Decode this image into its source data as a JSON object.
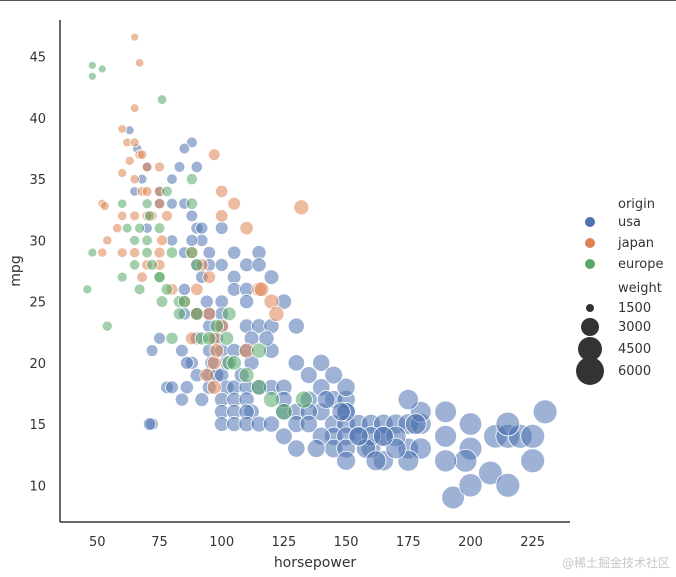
{
  "chart_data": {
    "type": "scatter",
    "xlabel": "horsepower",
    "ylabel": "mpg",
    "xlim": [
      35,
      240
    ],
    "ylim": [
      7,
      48
    ],
    "xticks": [
      50,
      75,
      100,
      125,
      150,
      175,
      200,
      225
    ],
    "yticks": [
      10,
      15,
      20,
      25,
      30,
      35,
      40,
      45
    ],
    "grid": false,
    "legend": {
      "placement": "right",
      "hue_title": "origin",
      "size_title": "weight",
      "size_levels": [
        1500,
        3000,
        4500,
        6000
      ]
    },
    "series": [
      {
        "name": "usa",
        "color": "#4c72b0",
        "points": [
          [
            88,
            38
          ],
          [
            85,
            37.5
          ],
          [
            90,
            36
          ],
          [
            63,
            39
          ],
          [
            66,
            37.5
          ],
          [
            70,
            36
          ],
          [
            75,
            34
          ],
          [
            80,
            33
          ],
          [
            85,
            33
          ],
          [
            88,
            32
          ],
          [
            90,
            31
          ],
          [
            92,
            30
          ],
          [
            95,
            29
          ],
          [
            95,
            28
          ],
          [
            90,
            28
          ],
          [
            100,
            28
          ],
          [
            105,
            27
          ],
          [
            110,
            28
          ],
          [
            115,
            29
          ],
          [
            105,
            26
          ],
          [
            100,
            25
          ],
          [
            95,
            24
          ],
          [
            90,
            24
          ],
          [
            85,
            24
          ],
          [
            100,
            23
          ],
          [
            110,
            23
          ],
          [
            115,
            23
          ],
          [
            120,
            23
          ],
          [
            130,
            23
          ],
          [
            90,
            22
          ],
          [
            95,
            21
          ],
          [
            100,
            21
          ],
          [
            105,
            21
          ],
          [
            110,
            21
          ],
          [
            88,
            20
          ],
          [
            90,
            19
          ],
          [
            95,
            19
          ],
          [
            98,
            19
          ],
          [
            100,
            19
          ],
          [
            102,
            18
          ],
          [
            105,
            18
          ],
          [
            110,
            18
          ],
          [
            115,
            18
          ],
          [
            120,
            18
          ],
          [
            78,
            18
          ],
          [
            100,
            17
          ],
          [
            105,
            17
          ],
          [
            110,
            17
          ],
          [
            112,
            16
          ],
          [
            100,
            16
          ],
          [
            105,
            16
          ],
          [
            110,
            16
          ],
          [
            100,
            15
          ],
          [
            105,
            15
          ],
          [
            110,
            15
          ],
          [
            115,
            15
          ],
          [
            72,
            15
          ],
          [
            71,
            15
          ],
          [
            125,
            16
          ],
          [
            130,
            16
          ],
          [
            135,
            17
          ],
          [
            140,
            18
          ],
          [
            145,
            17
          ],
          [
            150,
            17
          ],
          [
            150,
            16
          ],
          [
            140,
            16
          ],
          [
            145,
            15
          ],
          [
            150,
            15
          ],
          [
            155,
            15
          ],
          [
            160,
            15
          ],
          [
            165,
            15
          ],
          [
            170,
            15
          ],
          [
            175,
            15
          ],
          [
            180,
            15
          ],
          [
            145,
            14
          ],
          [
            150,
            14
          ],
          [
            155,
            14
          ],
          [
            140,
            14
          ],
          [
            145,
            13
          ],
          [
            150,
            13
          ],
          [
            130,
            13
          ],
          [
            175,
            13
          ],
          [
            180,
            13
          ],
          [
            165,
            14
          ],
          [
            170,
            14
          ],
          [
            190,
            14
          ],
          [
            200,
            13
          ],
          [
            210,
            14
          ],
          [
            215,
            14
          ],
          [
            220,
            14
          ],
          [
            225,
            14
          ],
          [
            230,
            16
          ],
          [
            215,
            15
          ],
          [
            200,
            15
          ],
          [
            180,
            16
          ],
          [
            190,
            16
          ],
          [
            198,
            12
          ],
          [
            208,
            11
          ],
          [
            193,
            9
          ],
          [
            200,
            10
          ],
          [
            215,
            10
          ],
          [
            225,
            12
          ],
          [
            190,
            12
          ],
          [
            175,
            12
          ],
          [
            165,
            12
          ],
          [
            160,
            13
          ],
          [
            150,
            12
          ],
          [
            160,
            14
          ],
          [
            170,
            13
          ],
          [
            150,
            18
          ],
          [
            140,
            20
          ],
          [
            135,
            19
          ],
          [
            125,
            18
          ],
          [
            115,
            28
          ],
          [
            120,
            27
          ],
          [
            125,
            25
          ],
          [
            110,
            26
          ],
          [
            105,
            29
          ],
          [
            100,
            31
          ],
          [
            92,
            31
          ],
          [
            88,
            30
          ],
          [
            85,
            29
          ],
          [
            80,
            30
          ],
          [
            80,
            35
          ],
          [
            83,
            36
          ],
          [
            75,
            33
          ],
          [
            70,
            31
          ],
          [
            65,
            34
          ],
          [
            68,
            35
          ],
          [
            85,
            26
          ],
          [
            92,
            27
          ],
          [
            94,
            25
          ],
          [
            98,
            22
          ],
          [
            120,
            21
          ],
          [
            130,
            20
          ],
          [
            135,
            16
          ],
          [
            145,
            19
          ],
          [
            150,
            16
          ],
          [
            130,
            15
          ],
          [
            125,
            14
          ],
          [
            120,
            15
          ],
          [
            108,
            19
          ],
          [
            112,
            22
          ],
          [
            102,
            20
          ],
          [
            92,
            17
          ],
          [
            95,
            18
          ],
          [
            96,
            20
          ],
          [
            84,
            21
          ],
          [
            86,
            20
          ],
          [
            86,
            18
          ],
          [
            84,
            17
          ],
          [
            80,
            18
          ],
          [
            75,
            22
          ],
          [
            72,
            21
          ],
          [
            95,
            23
          ],
          [
            100,
            24
          ],
          [
            110,
            25
          ],
          [
            112,
            20
          ],
          [
            118,
            22
          ],
          [
            125,
            17
          ],
          [
            175,
            17
          ],
          [
            148,
            16
          ],
          [
            158,
            13
          ],
          [
            162,
            12
          ],
          [
            135,
            15
          ],
          [
            138,
            13
          ],
          [
            142,
            17
          ],
          [
            155,
            14
          ],
          [
            165,
            14
          ],
          [
            178,
            15
          ]
        ]
      },
      {
        "name": "japan",
        "color": "#dd8452",
        "points": [
          [
            65,
            46.6
          ],
          [
            67,
            44.5
          ],
          [
            65,
            40.8
          ],
          [
            60,
            39.1
          ],
          [
            62,
            38
          ],
          [
            65,
            38
          ],
          [
            67,
            37
          ],
          [
            68,
            37
          ],
          [
            70,
            36
          ],
          [
            75,
            36
          ],
          [
            63,
            36.5
          ],
          [
            60,
            35.5
          ],
          [
            65,
            35
          ],
          [
            68,
            34
          ],
          [
            70,
            34
          ],
          [
            75,
            34
          ],
          [
            75,
            33
          ],
          [
            72,
            32
          ],
          [
            70,
            32
          ],
          [
            65,
            32
          ],
          [
            60,
            32
          ],
          [
            58,
            31
          ],
          [
            52,
            33
          ],
          [
            53,
            32.8
          ],
          [
            54,
            30
          ],
          [
            60,
            29
          ],
          [
            65,
            29
          ],
          [
            70,
            28
          ],
          [
            75,
            28
          ],
          [
            68,
            27
          ],
          [
            80,
            26
          ],
          [
            85,
            25
          ],
          [
            90,
            24
          ],
          [
            95,
            24
          ],
          [
            100,
            23
          ],
          [
            97,
            22
          ],
          [
            97,
            20
          ],
          [
            98,
            21
          ],
          [
            95,
            27
          ],
          [
            92,
            28
          ],
          [
            88,
            29
          ],
          [
            100,
            34
          ],
          [
            105,
            33
          ],
          [
            97,
            37
          ],
          [
            100,
            32
          ],
          [
            110,
            31
          ],
          [
            120,
            25
          ],
          [
            115,
            26
          ],
          [
            122,
            24
          ],
          [
            132,
            32.7
          ],
          [
            110,
            21
          ],
          [
            88,
            22
          ],
          [
            94,
            19
          ],
          [
            90,
            26
          ],
          [
            78,
            32
          ],
          [
            52,
            29
          ],
          [
            76,
            30
          ],
          [
            75,
            29
          ],
          [
            97,
            18
          ],
          [
            116,
            26
          ]
        ]
      },
      {
        "name": "europe",
        "color": "#55a868",
        "points": [
          [
            48,
            44.3
          ],
          [
            48,
            43.4
          ],
          [
            52,
            44
          ],
          [
            46,
            26
          ],
          [
            48,
            29
          ],
          [
            54,
            23
          ],
          [
            60,
            27
          ],
          [
            65,
            30
          ],
          [
            67,
            31
          ],
          [
            70,
            30
          ],
          [
            70,
            29
          ],
          [
            71,
            32
          ],
          [
            72,
            28
          ],
          [
            75,
            27
          ],
          [
            75,
            31
          ],
          [
            76,
            41.5
          ],
          [
            78,
            34
          ],
          [
            80,
            29
          ],
          [
            83,
            25
          ],
          [
            83,
            24
          ],
          [
            88,
            29
          ],
          [
            90,
            28
          ],
          [
            90,
            24
          ],
          [
            92,
            22
          ],
          [
            95,
            22
          ],
          [
            98,
            23
          ],
          [
            103,
            20
          ],
          [
            105,
            20
          ],
          [
            110,
            19
          ],
          [
            115,
            21
          ],
          [
            120,
            17
          ],
          [
            125,
            16
          ],
          [
            88,
            35
          ],
          [
            80,
            22
          ],
          [
            75,
            27
          ],
          [
            67,
            26
          ],
          [
            78,
            26
          ],
          [
            76,
            25
          ],
          [
            102,
            22
          ],
          [
            103,
            24
          ],
          [
            62,
            31
          ],
          [
            60,
            33
          ],
          [
            65,
            28
          ],
          [
            70,
            33
          ],
          [
            88,
            33
          ],
          [
            115,
            18
          ],
          [
            133,
            17
          ],
          [
            85,
            25
          ]
        ]
      }
    ]
  },
  "watermark": "@稀土掘金技术社区"
}
